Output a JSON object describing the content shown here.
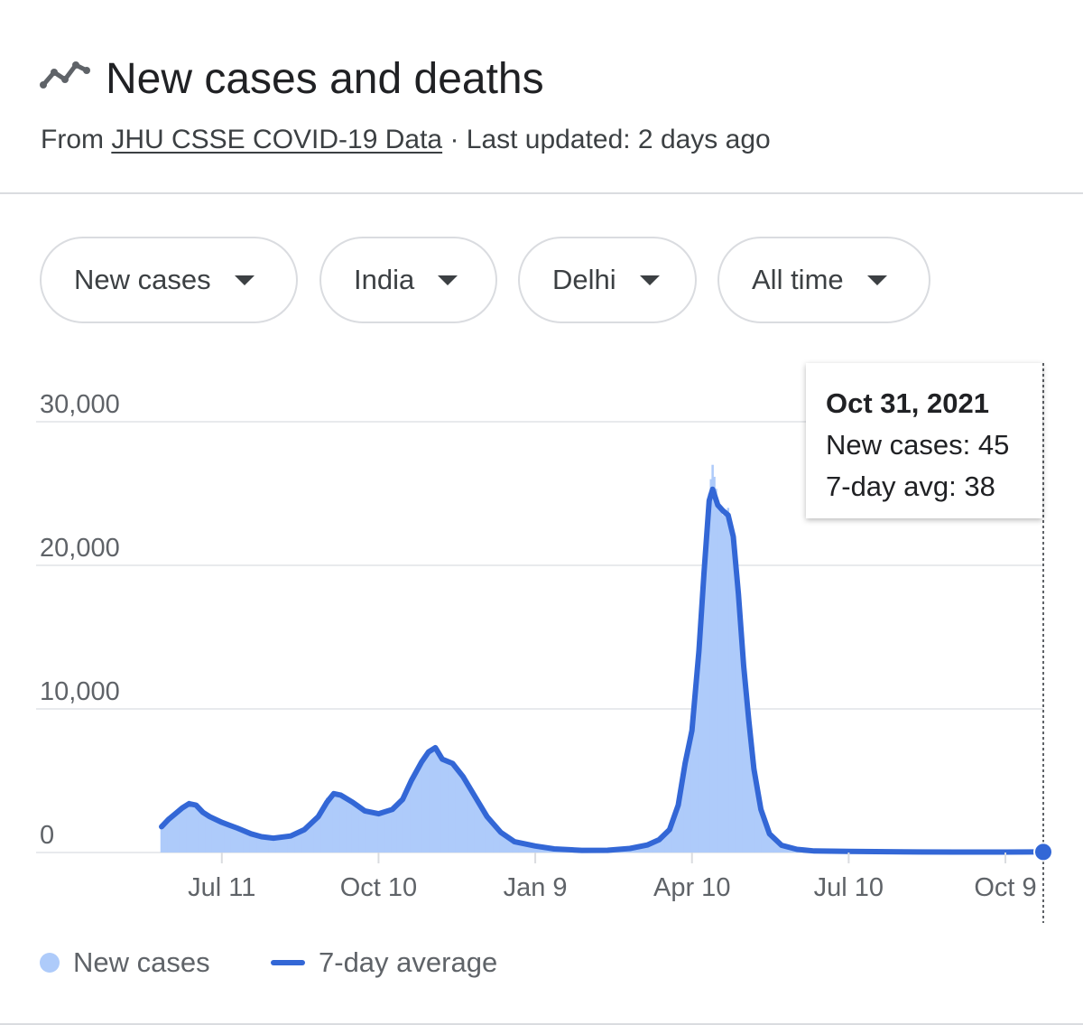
{
  "header": {
    "title": "New cases and deaths",
    "title_icon": "trending-line-icon",
    "source_prefix": "From ",
    "source_link": "JHU CSSE COVID-19 Data",
    "source_suffix": " · Last updated: 2 days ago"
  },
  "filters": {
    "metric": "New cases",
    "country": "India",
    "region": "Delhi",
    "range": "All time"
  },
  "tooltip": {
    "date": "Oct 31, 2021",
    "new_cases": "New cases: 45",
    "avg": "7-day avg: 38"
  },
  "legend": {
    "bars": "New cases",
    "line": "7-day average"
  },
  "colors": {
    "bars": "#aecbfa",
    "line": "#3367d6",
    "grid": "#e8eaed",
    "axis_text": "#5f6368"
  },
  "chart_data": {
    "type": "bar",
    "x_start": "2020-06-06",
    "x_end": "2021-10-31",
    "ylim": [
      0,
      30000
    ],
    "y_ticks": [
      {
        "value": 0,
        "label": "0"
      },
      {
        "value": 10000,
        "label": "10,000"
      },
      {
        "value": 20000,
        "label": "20,000"
      },
      {
        "value": 30000,
        "label": "30,000"
      }
    ],
    "x_ticks": [
      {
        "date": "2020-07-11",
        "label": "Jul 11"
      },
      {
        "date": "2020-10-10",
        "label": "Oct 10"
      },
      {
        "date": "2021-01-09",
        "label": "Jan 9"
      },
      {
        "date": "2021-04-10",
        "label": "Apr 10"
      },
      {
        "date": "2021-07-10",
        "label": "Jul 10"
      },
      {
        "date": "2021-10-09",
        "label": "Oct 9"
      }
    ],
    "grid": true,
    "legend_position": "bottom-left",
    "series": [
      {
        "name": "New cases",
        "kind": "bar",
        "points": [
          [
            "2020-06-06",
            1800
          ],
          [
            "2020-06-10",
            2500
          ],
          [
            "2020-06-14",
            2800
          ],
          [
            "2020-06-18",
            3200
          ],
          [
            "2020-06-22",
            3600
          ],
          [
            "2020-06-26",
            3400
          ],
          [
            "2020-06-30",
            2800
          ],
          [
            "2020-07-04",
            2500
          ],
          [
            "2020-07-11",
            2100
          ],
          [
            "2020-07-20",
            1700
          ],
          [
            "2020-07-28",
            1300
          ],
          [
            "2020-08-03",
            1100
          ],
          [
            "2020-08-10",
            1000
          ],
          [
            "2020-08-20",
            1200
          ],
          [
            "2020-08-28",
            1700
          ],
          [
            "2020-09-05",
            2600
          ],
          [
            "2020-09-10",
            3800
          ],
          [
            "2020-09-14",
            4200
          ],
          [
            "2020-09-18",
            4000
          ],
          [
            "2020-09-25",
            3500
          ],
          [
            "2020-10-02",
            2900
          ],
          [
            "2020-10-10",
            2700
          ],
          [
            "2020-10-18",
            3000
          ],
          [
            "2020-10-24",
            3700
          ],
          [
            "2020-10-29",
            5200
          ],
          [
            "2020-11-04",
            6500
          ],
          [
            "2020-11-08",
            7100
          ],
          [
            "2020-11-12",
            7400
          ],
          [
            "2020-11-16",
            6600
          ],
          [
            "2020-11-22",
            6300
          ],
          [
            "2020-11-28",
            5400
          ],
          [
            "2020-12-05",
            3900
          ],
          [
            "2020-12-12",
            2500
          ],
          [
            "2020-12-20",
            1400
          ],
          [
            "2020-12-28",
            750
          ],
          [
            "2021-01-09",
            450
          ],
          [
            "2021-01-20",
            250
          ],
          [
            "2021-02-05",
            150
          ],
          [
            "2021-02-20",
            160
          ],
          [
            "2021-03-05",
            280
          ],
          [
            "2021-03-15",
            550
          ],
          [
            "2021-03-22",
            950
          ],
          [
            "2021-03-28",
            1700
          ],
          [
            "2021-04-02",
            3600
          ],
          [
            "2021-04-06",
            6500
          ],
          [
            "2021-04-10",
            8500
          ],
          [
            "2021-04-14",
            14000
          ],
          [
            "2021-04-17",
            19000
          ],
          [
            "2021-04-20",
            25000
          ],
          [
            "2021-04-22",
            27000
          ],
          [
            "2021-04-25",
            24500
          ],
          [
            "2021-04-28",
            23500
          ],
          [
            "2021-05-01",
            24000
          ],
          [
            "2021-05-04",
            22000
          ],
          [
            "2021-05-07",
            18000
          ],
          [
            "2021-05-10",
            13000
          ],
          [
            "2021-05-13",
            9500
          ],
          [
            "2021-05-16",
            6000
          ],
          [
            "2021-05-20",
            3200
          ],
          [
            "2021-05-25",
            1400
          ],
          [
            "2021-06-01",
            550
          ],
          [
            "2021-06-10",
            250
          ],
          [
            "2021-06-20",
            120
          ],
          [
            "2021-07-10",
            80
          ],
          [
            "2021-08-10",
            50
          ],
          [
            "2021-09-10",
            35
          ],
          [
            "2021-10-09",
            30
          ],
          [
            "2021-10-31",
            45
          ]
        ]
      },
      {
        "name": "7-day average",
        "kind": "line",
        "points": [
          [
            "2020-06-06",
            1800
          ],
          [
            "2020-06-10",
            2300
          ],
          [
            "2020-06-14",
            2700
          ],
          [
            "2020-06-18",
            3100
          ],
          [
            "2020-06-22",
            3400
          ],
          [
            "2020-06-26",
            3300
          ],
          [
            "2020-06-30",
            2800
          ],
          [
            "2020-07-04",
            2500
          ],
          [
            "2020-07-11",
            2100
          ],
          [
            "2020-07-20",
            1700
          ],
          [
            "2020-07-28",
            1300
          ],
          [
            "2020-08-03",
            1100
          ],
          [
            "2020-08-10",
            1000
          ],
          [
            "2020-08-20",
            1150
          ],
          [
            "2020-08-28",
            1600
          ],
          [
            "2020-09-05",
            2500
          ],
          [
            "2020-09-10",
            3500
          ],
          [
            "2020-09-14",
            4100
          ],
          [
            "2020-09-18",
            4000
          ],
          [
            "2020-09-25",
            3500
          ],
          [
            "2020-10-02",
            2900
          ],
          [
            "2020-10-10",
            2700
          ],
          [
            "2020-10-18",
            3000
          ],
          [
            "2020-10-24",
            3700
          ],
          [
            "2020-10-29",
            5000
          ],
          [
            "2020-11-04",
            6300
          ],
          [
            "2020-11-08",
            7000
          ],
          [
            "2020-11-12",
            7300
          ],
          [
            "2020-11-16",
            6500
          ],
          [
            "2020-11-22",
            6200
          ],
          [
            "2020-11-28",
            5300
          ],
          [
            "2020-12-05",
            3900
          ],
          [
            "2020-12-12",
            2500
          ],
          [
            "2020-12-20",
            1400
          ],
          [
            "2020-12-28",
            750
          ],
          [
            "2021-01-09",
            450
          ],
          [
            "2021-01-20",
            250
          ],
          [
            "2021-02-05",
            150
          ],
          [
            "2021-02-20",
            160
          ],
          [
            "2021-03-05",
            280
          ],
          [
            "2021-03-15",
            520
          ],
          [
            "2021-03-22",
            900
          ],
          [
            "2021-03-28",
            1600
          ],
          [
            "2021-04-02",
            3300
          ],
          [
            "2021-04-06",
            6200
          ],
          [
            "2021-04-10",
            8500
          ],
          [
            "2021-04-14",
            14000
          ],
          [
            "2021-04-17",
            19500
          ],
          [
            "2021-04-20",
            24500
          ],
          [
            "2021-04-22",
            25300
          ],
          [
            "2021-04-25",
            24200
          ],
          [
            "2021-04-28",
            23800
          ],
          [
            "2021-05-01",
            23500
          ],
          [
            "2021-05-04",
            22000
          ],
          [
            "2021-05-07",
            18000
          ],
          [
            "2021-05-10",
            13000
          ],
          [
            "2021-05-13",
            9200
          ],
          [
            "2021-05-16",
            5800
          ],
          [
            "2021-05-20",
            3000
          ],
          [
            "2021-05-25",
            1300
          ],
          [
            "2021-06-01",
            500
          ],
          [
            "2021-06-10",
            220
          ],
          [
            "2021-06-20",
            110
          ],
          [
            "2021-07-10",
            75
          ],
          [
            "2021-08-10",
            45
          ],
          [
            "2021-09-10",
            33
          ],
          [
            "2021-10-09",
            30
          ],
          [
            "2021-10-31",
            38
          ]
        ]
      }
    ]
  }
}
